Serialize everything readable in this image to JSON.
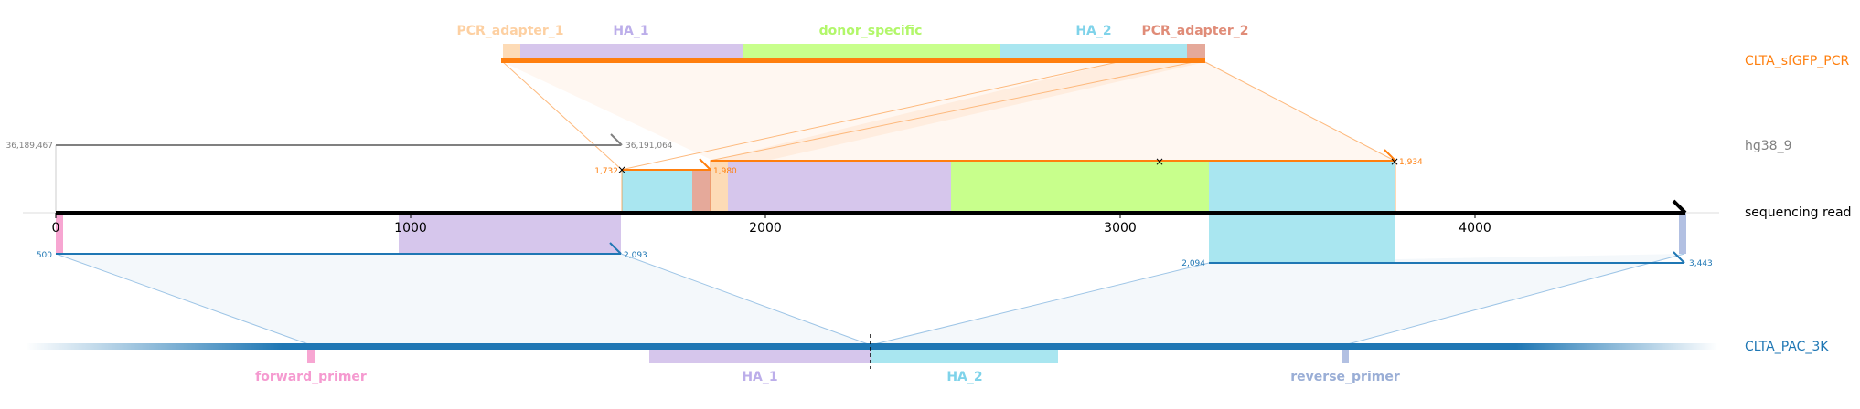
{
  "colors": {
    "pcr_adapter_1": "#fddbb6",
    "ha_1": "#d6c6ec",
    "donor_specific": "#c8ff8c",
    "ha_2": "#a9e6f0",
    "pcr_adapter_2": "#e5a99a",
    "forward_primer": "#f7a6d2",
    "reverse_primer": "#b2c0e2",
    "orange": "#ff7f0e",
    "blue": "#1f77b4",
    "gray": "#808080",
    "black": "#000000"
  },
  "tracks": {
    "donor": {
      "label": "CLTA_sfGFP_PCR",
      "color": "#ff7f0e"
    },
    "genome": {
      "label": "hg38_9",
      "color": "#808080"
    },
    "read": {
      "label": "sequencing read",
      "color": "#000000"
    },
    "target": {
      "label": "CLTA_PAC_3K",
      "color": "#1f77b4"
    }
  },
  "donor_features": [
    {
      "name": "PCR_adapter_1",
      "color": "#fdd0a2",
      "bar_color": "#fddbb6"
    },
    {
      "name": "HA_1",
      "color": "#bcaeea",
      "bar_color": "#d6c6ec"
    },
    {
      "name": "donor_specific",
      "color": "#b2f76a",
      "bar_color": "#c8ff8c"
    },
    {
      "name": "HA_2",
      "color": "#7fd3ea",
      "bar_color": "#a9e6f0"
    },
    {
      "name": "PCR_adapter_2",
      "color": "#e08c78",
      "bar_color": "#e5a99a"
    }
  ],
  "target_features": [
    {
      "name": "forward_primer",
      "color": "#f59ad0"
    },
    {
      "name": "HA_1",
      "color": "#bcaeea"
    },
    {
      "name": "HA_2",
      "color": "#7fd3ea"
    },
    {
      "name": "reverse_primer",
      "color": "#9aaed6"
    }
  ],
  "read_axis": {
    "ticks": [
      0,
      1000,
      2000,
      3000,
      4000
    ],
    "length": 4600
  },
  "genome_alignment": {
    "start": "36,189,467",
    "end": "36,191,064"
  },
  "donor_alignment": {
    "start": "1,732",
    "mid": "1,980",
    "end": "1,934"
  },
  "target_alignments": [
    {
      "start": "500",
      "end": "2,093"
    },
    {
      "start": "2,094",
      "end": "3,443"
    }
  ]
}
